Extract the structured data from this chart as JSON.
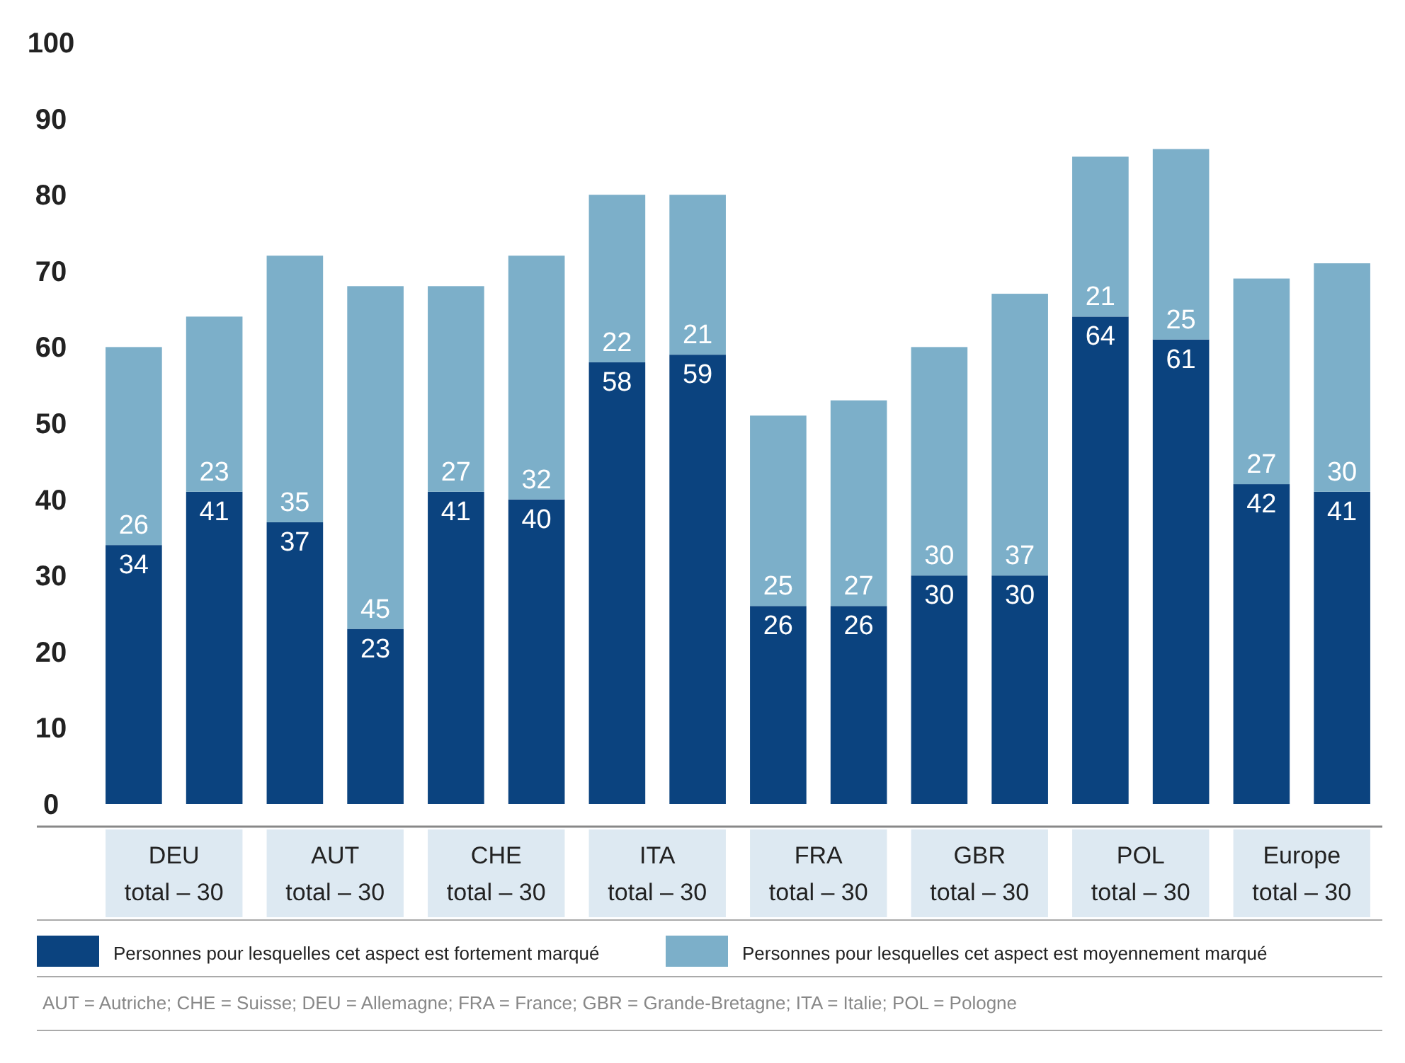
{
  "chart_data": {
    "type": "bar",
    "stacked": true,
    "categories": [
      "DEU\ntotal – 30",
      null,
      "AUT\ntotal – 30",
      null,
      "CHE\ntotal – 30",
      null,
      "ITA\ntotal – 30",
      null,
      "FRA\ntotal – 30",
      null,
      "GBR\ntotal – 30",
      null,
      "POL\ntotal – 30",
      null,
      "Europe\ntotal – 30",
      null
    ],
    "series": [
      {
        "name": "Personnes pour lesquelles cet aspect est fortement marqué",
        "color": "#0b437f",
        "values": [
          34,
          41,
          37,
          23,
          41,
          40,
          58,
          59,
          26,
          26,
          30,
          30,
          64,
          61,
          42,
          41
        ]
      },
      {
        "name": "Personnes pour lesquelles cet aspect est moyennement marqué",
        "color": "#7cafc9",
        "values": [
          26,
          23,
          35,
          45,
          27,
          32,
          22,
          21,
          25,
          27,
          30,
          37,
          21,
          25,
          27,
          30
        ]
      }
    ],
    "ylim": [
      0,
      100
    ],
    "yticks": [
      0,
      10,
      20,
      30,
      40,
      50,
      60,
      70,
      80,
      90,
      100
    ],
    "data_labels": true,
    "legend": "bottom",
    "annotations": [
      "AUT = Autriche; CHE = Suisse; DEU = Allemagne; FRA = France; GBR = Grande-Bretagne; ITA = Italie; POL = Pologne"
    ]
  }
}
